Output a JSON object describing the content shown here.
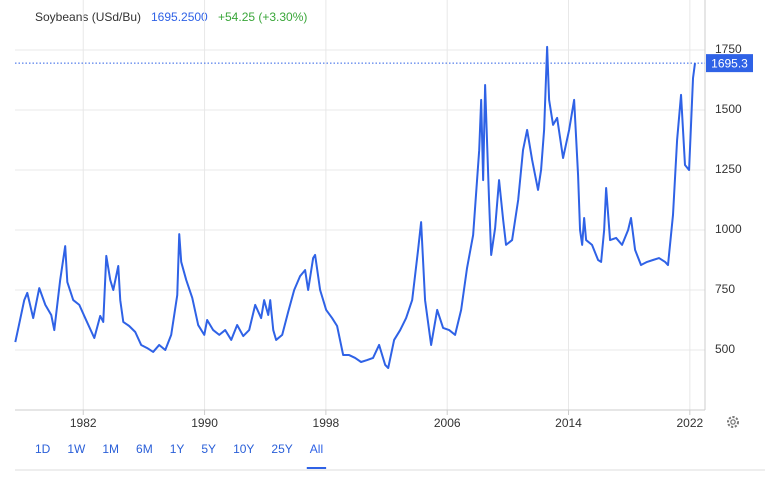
{
  "chart_data": {
    "type": "line",
    "title": "Soybeans (USd/Bu)",
    "price": "1695.2500",
    "change": "+54.25 (+3.30%)",
    "price_tag": 1695.3,
    "x": [
      1977.52,
      1977.72,
      1978.11,
      1978.31,
      1978.7,
      1979.1,
      1979.5,
      1979.89,
      1980.09,
      1980.48,
      1980.81,
      1980.95,
      1981.34,
      1981.74,
      1982.13,
      1982.73,
      1983.12,
      1983.32,
      1983.52,
      1983.78,
      1983.98,
      1984.31,
      1984.44,
      1984.64,
      1985.03,
      1985.43,
      1985.82,
      1986.22,
      1986.61,
      1987.01,
      1987.41,
      1987.8,
      1988.2,
      1988.33,
      1988.46,
      1988.79,
      1989.19,
      1989.58,
      1989.98,
      1990.17,
      1990.57,
      1990.97,
      1991.36,
      1991.76,
      1992.15,
      1992.55,
      1992.94,
      1993.34,
      1993.73,
      1993.93,
      1994.2,
      1994.33,
      1994.53,
      1994.72,
      1995.12,
      1995.51,
      1995.91,
      1996.3,
      1996.63,
      1996.83,
      1997.16,
      1997.29,
      1997.62,
      1998.02,
      1998.41,
      1998.74,
      1999.14,
      1999.53,
      1999.93,
      2000.32,
      2000.72,
      2001.11,
      2001.51,
      2001.91,
      2002.11,
      2002.5,
      2002.9,
      2003.29,
      2003.69,
      2004.08,
      2004.28,
      2004.54,
      2004.94,
      2005.34,
      2005.73,
      2006.13,
      2006.52,
      2006.92,
      2007.31,
      2007.71,
      2008.11,
      2008.24,
      2008.37,
      2008.5,
      2008.76,
      2008.9,
      2009.16,
      2009.42,
      2009.69,
      2009.88,
      2010.28,
      2010.68,
      2011.0,
      2011.27,
      2011.6,
      2011.99,
      2012.19,
      2012.39,
      2012.59,
      2012.72,
      2012.98,
      2013.25,
      2013.64,
      2014.04,
      2014.37,
      2014.63,
      2014.76,
      2014.9,
      2015.03,
      2015.16,
      2015.55,
      2015.95,
      2016.15,
      2016.35,
      2016.48,
      2016.74,
      2017.14,
      2017.53,
      2017.93,
      2018.12,
      2018.39,
      2018.78,
      2019.18,
      2019.57,
      2019.97,
      2020.37,
      2020.56,
      2020.89,
      2021.16,
      2021.42,
      2021.68,
      2021.95,
      2022.21,
      2022.34
    ],
    "series": [
      {
        "name": "Soybeans",
        "color": "#2f62e6",
        "values": [
          533,
          592,
          708,
          738,
          633,
          758,
          688,
          646,
          583,
          792,
          933,
          783,
          708,
          688,
          633,
          550,
          642,
          617,
          892,
          792,
          750,
          850,
          708,
          617,
          600,
          575,
          521,
          508,
          492,
          521,
          500,
          563,
          729,
          983,
          867,
          792,
          717,
          604,
          563,
          625,
          583,
          563,
          583,
          542,
          604,
          558,
          583,
          688,
          633,
          708,
          646,
          708,
          583,
          542,
          563,
          658,
          750,
          808,
          833,
          750,
          883,
          896,
          750,
          667,
          633,
          600,
          479,
          479,
          467,
          450,
          458,
          467,
          521,
          438,
          425,
          542,
          583,
          633,
          708,
          917,
          1033,
          708,
          521,
          667,
          592,
          583,
          563,
          667,
          842,
          979,
          1333,
          1542,
          1208,
          1604,
          1125,
          896,
          1008,
          1208,
          1042,
          938,
          958,
          1125,
          1333,
          1417,
          1292,
          1167,
          1250,
          1417,
          1763,
          1542,
          1438,
          1467,
          1300,
          1417,
          1542,
          1229,
          1000,
          938,
          1050,
          958,
          938,
          875,
          867,
          1000,
          1175,
          958,
          967,
          938,
          1000,
          1050,
          917,
          854,
          867,
          875,
          883,
          867,
          854,
          1063,
          1375,
          1563,
          1271,
          1250,
          1633,
          1695.25
        ]
      }
    ],
    "xlim": [
      1977.5,
      2023
    ],
    "xticks": [
      1982,
      1990,
      1998,
      2006,
      2014,
      2022
    ],
    "ylim": [
      250,
      1875
    ],
    "yticks": [
      500,
      750,
      1000,
      1250,
      1500,
      1750
    ],
    "grid": true,
    "ranges": [
      "1D",
      "1W",
      "1M",
      "6M",
      "1Y",
      "5Y",
      "10Y",
      "25Y",
      "All"
    ],
    "active_range": 8
  }
}
